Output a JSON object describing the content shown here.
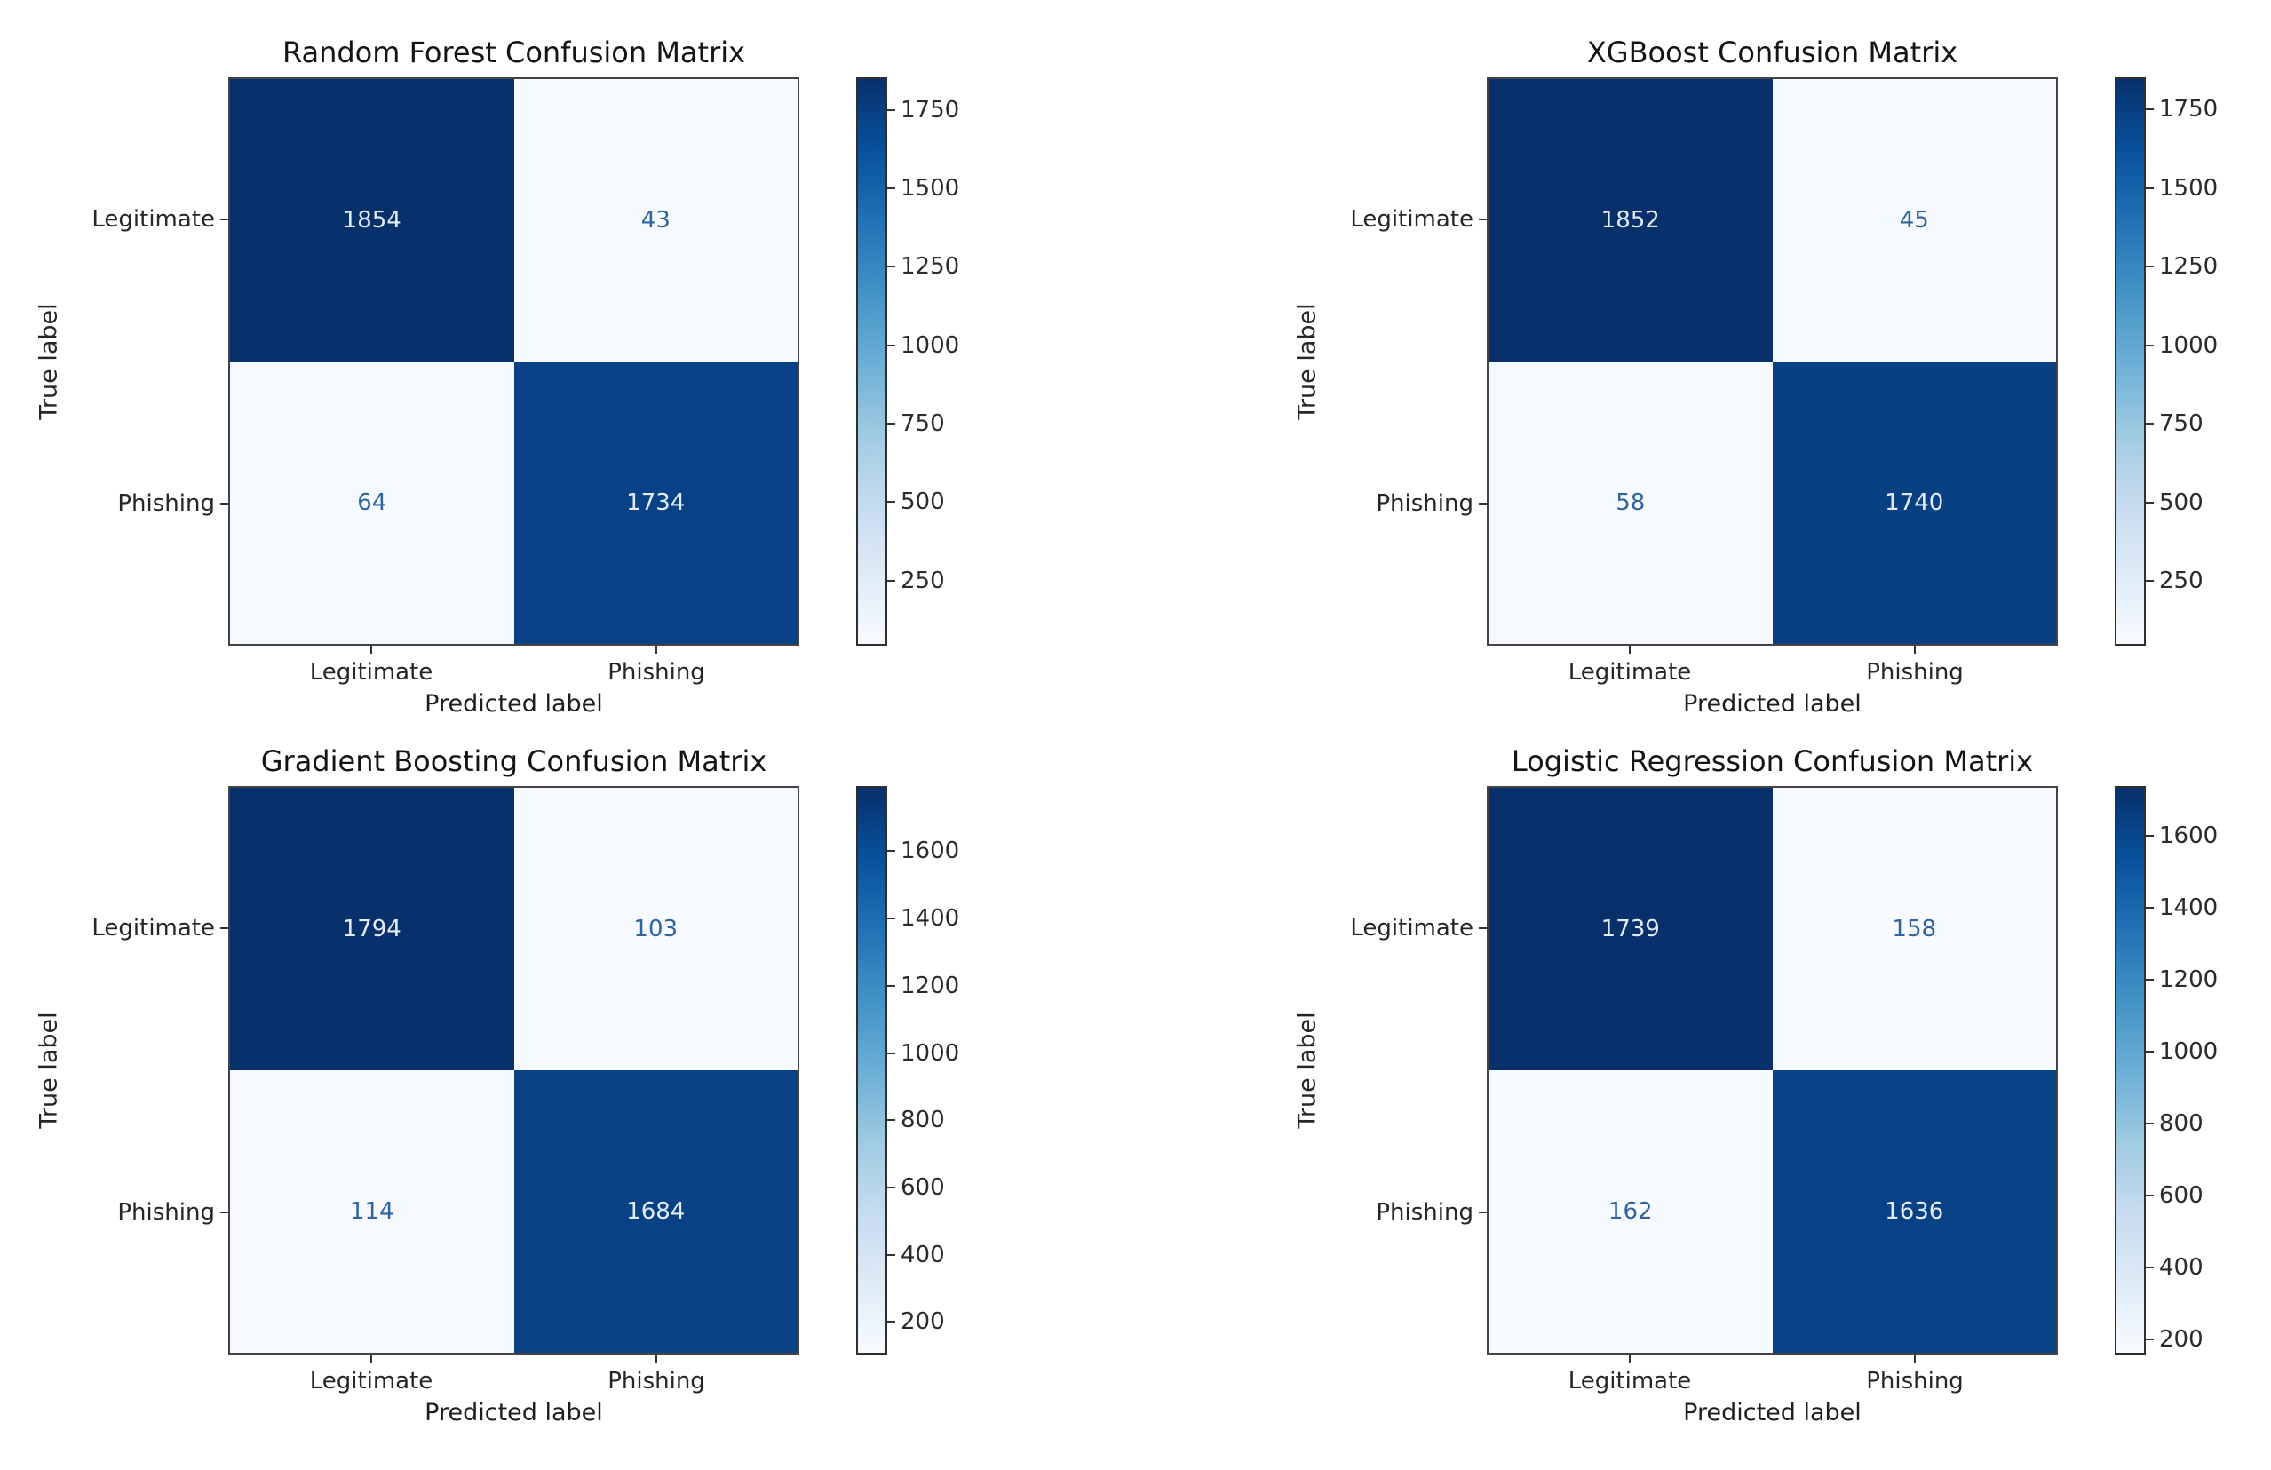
{
  "figure": {
    "type": "matplotlib-confusion-matrix-grid",
    "background": "#ffffff"
  },
  "colors": {
    "colormap_name": "Blues",
    "cmap_stops": [
      [
        0.0,
        "#f7fbff"
      ],
      [
        0.125,
        "#deebf7"
      ],
      [
        0.25,
        "#c6dbef"
      ],
      [
        0.375,
        "#9ecae1"
      ],
      [
        0.5,
        "#6baed6"
      ],
      [
        0.625,
        "#4292c6"
      ],
      [
        0.75,
        "#2171b5"
      ],
      [
        0.875,
        "#08519c"
      ],
      [
        1.0,
        "#08306b"
      ]
    ],
    "text_on_dark": "#e3ebf6",
    "text_on_light": "#2f649e",
    "axis_text": "#262626",
    "title_text": "#141414"
  },
  "chart_data": [
    {
      "type": "heatmap",
      "title": "Random Forest Confusion Matrix",
      "xlabel": "Predicted label",
      "ylabel": "True label",
      "row_labels": [
        "Legitimate",
        "Phishing"
      ],
      "col_labels": [
        "Legitimate",
        "Phishing"
      ],
      "values": [
        [
          1854,
          43
        ],
        [
          64,
          1734
        ]
      ],
      "colorbar": {
        "vmin": 43,
        "vmax": 1854,
        "ticks": [
          250,
          500,
          750,
          1000,
          1250,
          1500,
          1750
        ]
      },
      "legend": "none",
      "grid": false
    },
    {
      "type": "heatmap",
      "title": "XGBoost Confusion Matrix",
      "xlabel": "Predicted label",
      "ylabel": "True label",
      "row_labels": [
        "Legitimate",
        "Phishing"
      ],
      "col_labels": [
        "Legitimate",
        "Phishing"
      ],
      "values": [
        [
          1852,
          45
        ],
        [
          58,
          1740
        ]
      ],
      "colorbar": {
        "vmin": 45,
        "vmax": 1852,
        "ticks": [
          250,
          500,
          750,
          1000,
          1250,
          1500,
          1750
        ]
      },
      "legend": "none",
      "grid": false
    },
    {
      "type": "heatmap",
      "title": "Gradient Boosting Confusion Matrix",
      "xlabel": "Predicted label",
      "ylabel": "True label",
      "row_labels": [
        "Legitimate",
        "Phishing"
      ],
      "col_labels": [
        "Legitimate",
        "Phishing"
      ],
      "values": [
        [
          1794,
          103
        ],
        [
          114,
          1684
        ]
      ],
      "colorbar": {
        "vmin": 103,
        "vmax": 1794,
        "ticks": [
          200,
          400,
          600,
          800,
          1000,
          1200,
          1400,
          1600
        ]
      },
      "legend": "none",
      "grid": false
    },
    {
      "type": "heatmap",
      "title": "Logistic Regression Confusion Matrix",
      "xlabel": "Predicted label",
      "ylabel": "True label",
      "row_labels": [
        "Legitimate",
        "Phishing"
      ],
      "col_labels": [
        "Legitimate",
        "Phishing"
      ],
      "values": [
        [
          1739,
          158
        ],
        [
          162,
          1636
        ]
      ],
      "colorbar": {
        "vmin": 158,
        "vmax": 1739,
        "ticks": [
          200,
          400,
          600,
          800,
          1000,
          1200,
          1400,
          1600
        ]
      },
      "legend": "none",
      "grid": false
    }
  ]
}
